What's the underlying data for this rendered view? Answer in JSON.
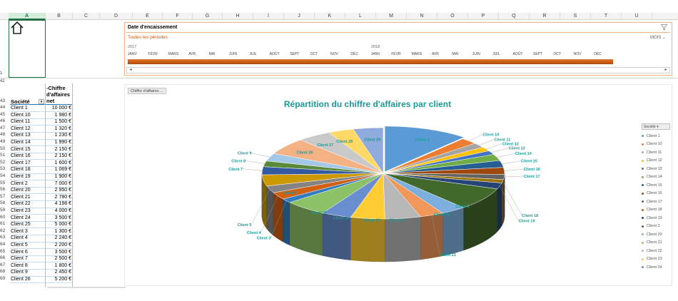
{
  "sheet": {
    "columns": [
      "A",
      "B",
      "C",
      "D",
      "E",
      "F",
      "G",
      "H",
      "I",
      "J",
      "K",
      "L",
      "M",
      "N",
      "O",
      "P",
      "Q",
      "R",
      "S",
      "T",
      "U"
    ],
    "selected_column": "A",
    "row_numbers_top": [
      "1",
      "42"
    ],
    "row_numbers": [
      "43",
      "44",
      "45",
      "46",
      "47",
      "48",
      "49",
      "50",
      "51",
      "52",
      "53",
      "54",
      "55",
      "56",
      "57",
      "58",
      "59",
      "60",
      "61",
      "62",
      "63",
      "64",
      "65",
      "66",
      "67",
      "68",
      "69"
    ]
  },
  "timeline": {
    "title": "Date d'encaissement",
    "periods": "Toutes les périodes",
    "level": "MOIS",
    "years": [
      "2017",
      "2018"
    ],
    "months": [
      "JANV",
      "FÉVR",
      "MARS",
      "AVR",
      "MAI",
      "JUIN",
      "JUIL",
      "AOÛT",
      "SEPT",
      "OCT",
      "NOV",
      "DÉC",
      "JANV",
      "FÉVR",
      "MARS",
      "AVR",
      "MAI",
      "JUIN",
      "JUIL",
      "AOÛT",
      "SEPT",
      "OCT",
      "NOV",
      "DÉC"
    ],
    "scroll_left": "◂",
    "scroll_right": "▸"
  },
  "table": {
    "header_company": "Société",
    "header_revenue_lines": [
      "-Chiffre",
      "d'affaires",
      "net"
    ],
    "dropdown_glyph": "▾",
    "rows": [
      {
        "name": "Client 1",
        "value": "10 000 €"
      },
      {
        "name": "Client 10",
        "value": "1 980 €"
      },
      {
        "name": "Client 11",
        "value": "1 500 €"
      },
      {
        "name": "Client 12",
        "value": "1 320 €"
      },
      {
        "name": "Client 13",
        "value": "1 230 €"
      },
      {
        "name": "Client 14",
        "value": "1 990 €"
      },
      {
        "name": "Client 15",
        "value": "2 150 €"
      },
      {
        "name": "Client 16",
        "value": "2 150 €"
      },
      {
        "name": "Client 17",
        "value": "1 600 €"
      },
      {
        "name": "Client 18",
        "value": "1 069 €"
      },
      {
        "name": "Client 19",
        "value": "1 900 €"
      },
      {
        "name": "Client 2",
        "value": "7 000 €"
      },
      {
        "name": "Client 20",
        "value": "2 950 €"
      },
      {
        "name": "Client 21",
        "value": "2 780 €"
      },
      {
        "name": "Client 22",
        "value": "4 198 €"
      },
      {
        "name": "Client 23",
        "value": "4 000 €"
      },
      {
        "name": "Client 24",
        "value": "3 500 €"
      },
      {
        "name": "Client 25",
        "value": "5 000 €"
      },
      {
        "name": "Client 3",
        "value": "1 300 €"
      },
      {
        "name": "Client 4",
        "value": "2 240 €"
      },
      {
        "name": "Client 5",
        "value": "2 200 €"
      },
      {
        "name": "Client 6",
        "value": "3 500 €"
      },
      {
        "name": "Client 7",
        "value": "2 500 €"
      },
      {
        "name": "Client 8",
        "value": "1 800 €"
      },
      {
        "name": "Client 9",
        "value": "2 450 €"
      },
      {
        "name": "Client 26",
        "value": "5 200 €"
      }
    ]
  },
  "chart": {
    "field_button": "Chiffre d'affaires ...",
    "legend_button": "Société",
    "legend_dropdown": "▾",
    "legend_items": [
      "Client 1",
      "Client 10",
      "Client 11",
      "Client 12",
      "Client 13",
      "Client 14",
      "Client 15",
      "Client 16",
      "Client 17",
      "Client 18",
      "Client 19",
      "Client 2",
      "Client 20",
      "Client 21",
      "Client 22",
      "Client 23",
      "Client 24"
    ]
  },
  "chart_data": {
    "type": "pie",
    "title": "Répartition du chiffre d'affaires par client",
    "categories": [
      "Client 1",
      "Client 10",
      "Client 11",
      "Client 12",
      "Client 13",
      "Client 14",
      "Client 15",
      "Client 16",
      "Client 17",
      "Client 18",
      "Client 19",
      "Client 2",
      "Client 20",
      "Client 21",
      "Client 22",
      "Client 23",
      "Client 24",
      "Client 25",
      "Client 3",
      "Client 4",
      "Client 5",
      "Client 6",
      "Client 7",
      "Client 8",
      "Client 9",
      "Client 26",
      "Client 27",
      "Client 28",
      "Client 29"
    ],
    "values": [
      10000,
      1980,
      1500,
      1320,
      1230,
      1990,
      2150,
      2150,
      1600,
      1069,
      1900,
      7000,
      2950,
      2780,
      4198,
      4000,
      3500,
      5000,
      1300,
      2240,
      2200,
      3500,
      2500,
      1800,
      2450,
      5200,
      4000,
      3000,
      3500
    ],
    "colors": [
      "#5b9bd5",
      "#ed7d31",
      "#a5a5a5",
      "#ffc000",
      "#4472c4",
      "#70ad47",
      "#255e91",
      "#9e480e",
      "#636363",
      "#997300",
      "#264478",
      "#43682b",
      "#7cafdd",
      "#f1975a",
      "#b7b7b7",
      "#ffcd33",
      "#698ed0",
      "#8cc168",
      "#327dc2",
      "#d26012",
      "#848484",
      "#cc9a00",
      "#335aa1",
      "#5a8a39",
      "#a3c7e7",
      "#f4b183",
      "#c9c9c9",
      "#ffd966",
      "#8faadc"
    ],
    "legend_position": "right",
    "style": "3d-exploded-first"
  }
}
